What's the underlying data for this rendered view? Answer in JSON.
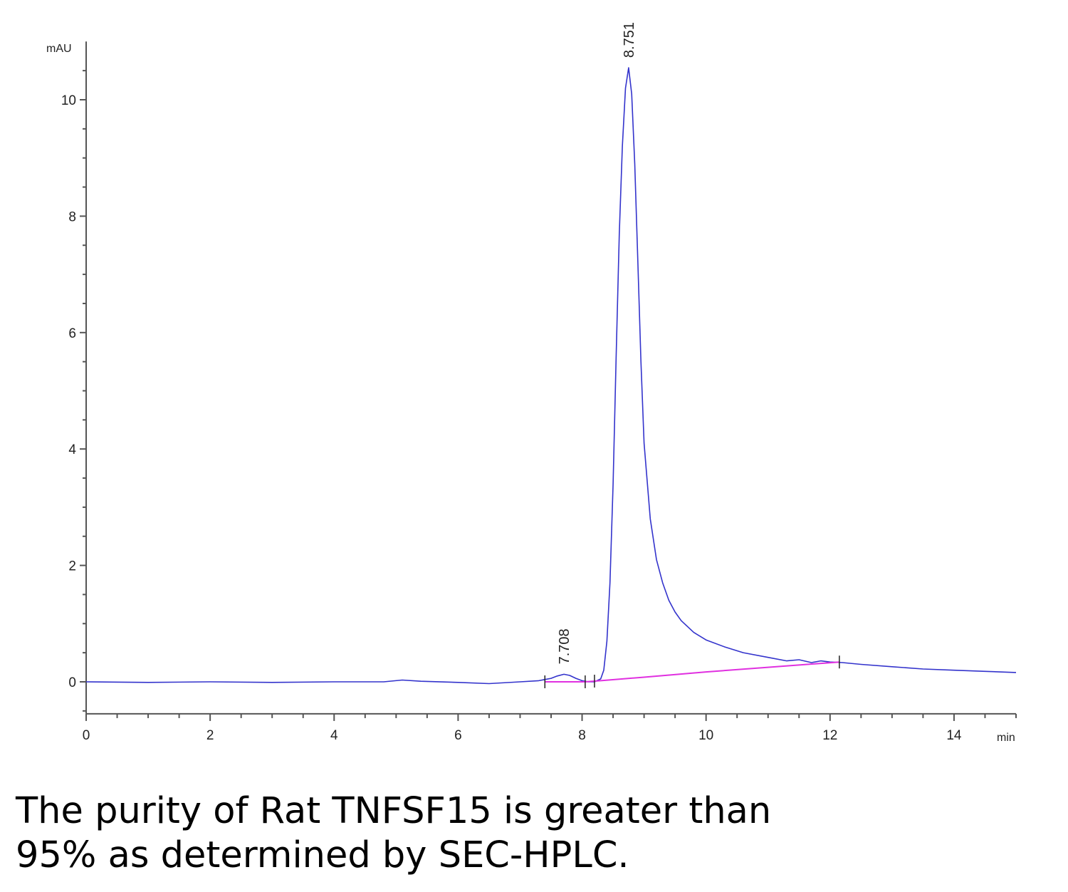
{
  "chart_data": {
    "type": "line",
    "title": "",
    "xlabel": "",
    "ylabel": "",
    "y_unit": "mAU",
    "x_unit": "min",
    "xlim": [
      0,
      15
    ],
    "ylim": [
      -0.55,
      11.0
    ],
    "x_ticks": [
      0,
      2,
      4,
      6,
      8,
      10,
      12,
      14
    ],
    "y_ticks": [
      0,
      2,
      4,
      6,
      8,
      10
    ],
    "grid": false,
    "series": [
      {
        "color": "#3333cc",
        "x": [
          0,
          1,
          2,
          3,
          4,
          4.8,
          5.1,
          5.4,
          6,
          6.5,
          7,
          7.3,
          7.5,
          7.6,
          7.708,
          7.8,
          7.9,
          8.0,
          8.1,
          8.2,
          8.3,
          8.35,
          8.4,
          8.45,
          8.5,
          8.55,
          8.6,
          8.65,
          8.7,
          8.751,
          8.8,
          8.85,
          8.9,
          8.95,
          9.0,
          9.1,
          9.2,
          9.3,
          9.4,
          9.5,
          9.6,
          9.8,
          10.0,
          10.3,
          10.6,
          11.0,
          11.3,
          11.5,
          11.7,
          11.85,
          12.0,
          12.2,
          12.5,
          13.0,
          13.5,
          14.0,
          14.5,
          15.0
        ],
        "y": [
          0.0,
          -0.01,
          0.0,
          -0.01,
          0.0,
          0.0,
          0.03,
          0.01,
          -0.01,
          -0.03,
          0.0,
          0.02,
          0.06,
          0.1,
          0.13,
          0.11,
          0.06,
          0.02,
          0.0,
          0.0,
          0.05,
          0.2,
          0.7,
          1.7,
          3.4,
          5.6,
          7.7,
          9.2,
          10.2,
          10.55,
          10.1,
          8.9,
          7.2,
          5.5,
          4.1,
          2.8,
          2.1,
          1.7,
          1.4,
          1.2,
          1.05,
          0.85,
          0.72,
          0.6,
          0.5,
          0.42,
          0.36,
          0.38,
          0.33,
          0.36,
          0.34,
          0.33,
          0.3,
          0.26,
          0.22,
          0.2,
          0.18,
          0.16
        ]
      },
      {
        "color": "#e030e0",
        "x": [
          7.4,
          8.05,
          8.3,
          9.0,
          10.0,
          11.0,
          12.15
        ],
        "y": [
          0.0,
          0.0,
          0.02,
          0.08,
          0.17,
          0.25,
          0.34
        ]
      }
    ],
    "peaks": [
      {
        "label": "7.708",
        "x": 7.708,
        "y": 0.13
      },
      {
        "label": "8.751",
        "x": 8.751,
        "y": 10.55
      }
    ],
    "integration_marks_x": [
      7.4,
      8.05,
      8.2,
      12.15
    ]
  },
  "caption": {
    "line1": "The purity of Rat TNFSF15 is greater than",
    "line2": "95% as determined by SEC-HPLC."
  }
}
